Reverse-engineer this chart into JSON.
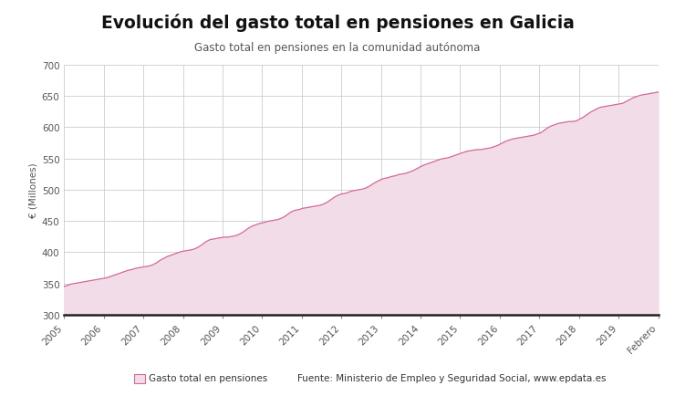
{
  "title": "Evolución del gasto total en pensiones en Galicia",
  "subtitle": "Gasto total en pensiones en la comunidad autónoma",
  "ylabel": "€ (Millones)",
  "legend_label": "Gasto total en pensiones",
  "source_text": "Fuente: Ministerio de Empleo y Seguridad Social, www.epdata.es",
  "line_color": "#d4689a",
  "fill_color": "#f2dce8",
  "background_color": "#ffffff",
  "grid_color": "#cccccc",
  "ylim": [
    300,
    700
  ],
  "yticks": [
    300,
    350,
    400,
    450,
    500,
    550,
    600,
    650,
    700
  ],
  "x_labels": [
    "2005",
    "2006",
    "2007",
    "2008",
    "2009",
    "2010",
    "2011",
    "2012",
    "2013",
    "2014",
    "2015",
    "2016",
    "2017",
    "2018",
    "2019",
    "Febrero"
  ],
  "monthly_values": [
    345,
    347,
    349,
    350,
    351,
    352,
    353,
    354,
    355,
    356,
    357,
    358,
    359,
    361,
    363,
    365,
    367,
    369,
    371,
    372,
    374,
    375,
    376,
    377,
    378,
    380,
    383,
    387,
    390,
    393,
    395,
    397,
    399,
    401,
    402,
    403,
    404,
    406,
    409,
    413,
    417,
    420,
    421,
    422,
    423,
    424,
    424,
    425,
    426,
    428,
    431,
    435,
    439,
    442,
    444,
    446,
    447,
    449,
    450,
    451,
    452,
    454,
    457,
    461,
    465,
    467,
    468,
    470,
    471,
    472,
    473,
    474,
    475,
    477,
    480,
    484,
    488,
    491,
    493,
    494,
    496,
    498,
    499,
    500,
    501,
    503,
    506,
    510,
    513,
    516,
    518,
    519,
    521,
    522,
    524,
    525,
    526,
    528,
    530,
    533,
    536,
    539,
    541,
    543,
    545,
    547,
    549,
    550,
    551,
    553,
    555,
    557,
    559,
    561,
    562,
    563,
    564,
    564,
    565,
    566,
    567,
    569,
    571,
    574,
    577,
    579,
    581,
    582,
    583,
    584,
    585,
    586,
    587,
    589,
    591,
    595,
    599,
    602,
    604,
    606,
    607,
    608,
    609,
    609,
    610,
    613,
    616,
    620,
    624,
    627,
    630,
    632,
    633,
    634,
    635,
    636,
    637,
    638,
    641,
    644,
    647,
    649,
    651,
    652,
    653,
    654,
    655,
    656
  ],
  "n_years": 16
}
